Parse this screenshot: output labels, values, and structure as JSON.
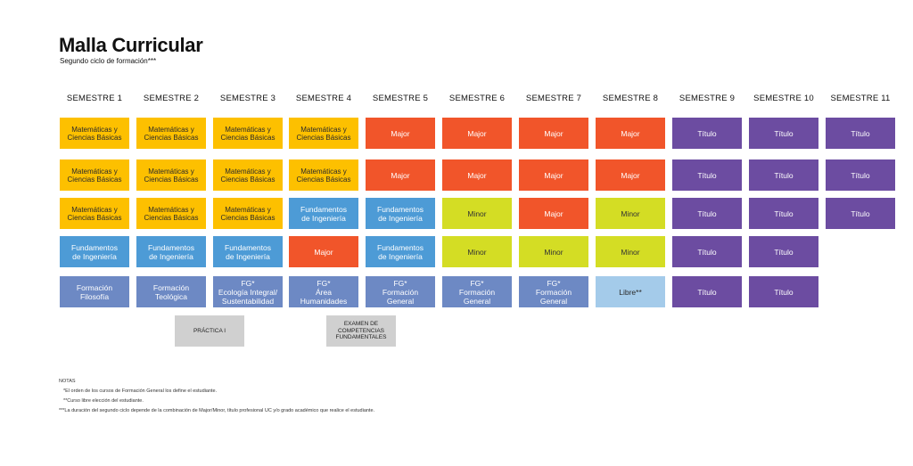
{
  "title": "Malla Curricular",
  "subtitle": "Segundo ciclo de formación***",
  "semesters": [
    "SEMESTRE 1",
    "SEMESTRE 2",
    "SEMESTRE 3",
    "SEMESTRE 4",
    "SEMESTRE 5",
    "SEMESTRE 6",
    "SEMESTRE 7",
    "SEMESTRE 8",
    "SEMESTRE 9",
    "SEMESTRE 10",
    "SEMESTRE 11"
  ],
  "colors": {
    "yellow": "#fdc000",
    "orange": "#f1552a",
    "purple": "#6c4ca1",
    "blue": "#4d9bd6",
    "slate": "#6d89c4",
    "lime": "#d4dd24",
    "light": "#a4cbea"
  },
  "columns": [
    [
      {
        "label": "Matemáticas y\nCiencias Básicas",
        "color": "yellow"
      },
      {
        "label": "Matemáticas y\nCiencias Básicas",
        "color": "yellow"
      },
      {
        "label": "Matemáticas y\nCiencias Básicas",
        "color": "yellow"
      },
      {
        "label": "Fundamentos\nde Ingeniería",
        "color": "blue"
      },
      {
        "label": "Formación\nFilosofía",
        "color": "slate"
      }
    ],
    [
      {
        "label": "Matemáticas y\nCiencias Básicas",
        "color": "yellow"
      },
      {
        "label": "Matemáticas y\nCiencias Básicas",
        "color": "yellow"
      },
      {
        "label": "Matemáticas y\nCiencias Básicas",
        "color": "yellow"
      },
      {
        "label": "Fundamentos\nde Ingeniería",
        "color": "blue"
      },
      {
        "label": "Formación\nTeológica",
        "color": "slate"
      }
    ],
    [
      {
        "label": "Matemáticas y\nCiencias Básicas",
        "color": "yellow"
      },
      {
        "label": "Matemáticas y\nCiencias Básicas",
        "color": "yellow"
      },
      {
        "label": "Matemáticas y\nCiencias Básicas",
        "color": "yellow"
      },
      {
        "label": "Fundamentos\nde Ingeniería",
        "color": "blue"
      },
      {
        "label": "FG*\nEcología Integral/\nSustentabilidad",
        "color": "slate"
      }
    ],
    [
      {
        "label": "Matemáticas y\nCiencias Básicas",
        "color": "yellow"
      },
      {
        "label": "Matemáticas y\nCiencias Básicas",
        "color": "yellow"
      },
      {
        "label": "Fundamentos\nde Ingeniería",
        "color": "blue"
      },
      {
        "label": "Major",
        "color": "orange"
      },
      {
        "label": "FG*\nÁrea\nHumanidades",
        "color": "slate"
      }
    ],
    [
      {
        "label": "Major",
        "color": "orange"
      },
      {
        "label": "Major",
        "color": "orange"
      },
      {
        "label": "Fundamentos\nde Ingeniería",
        "color": "blue"
      },
      {
        "label": "Fundamentos\nde Ingeniería",
        "color": "blue"
      },
      {
        "label": "FG*\nFormación\nGeneral",
        "color": "slate"
      }
    ],
    [
      {
        "label": "Major",
        "color": "orange"
      },
      {
        "label": "Major",
        "color": "orange"
      },
      {
        "label": "Minor",
        "color": "lime"
      },
      {
        "label": "Minor",
        "color": "lime"
      },
      {
        "label": "FG*\nFormación\nGeneral",
        "color": "slate"
      }
    ],
    [
      {
        "label": "Major",
        "color": "orange"
      },
      {
        "label": "Major",
        "color": "orange"
      },
      {
        "label": "Major",
        "color": "orange"
      },
      {
        "label": "Minor",
        "color": "lime"
      },
      {
        "label": "FG*\nFormación\nGeneral",
        "color": "slate"
      }
    ],
    [
      {
        "label": "Major",
        "color": "orange"
      },
      {
        "label": "Major",
        "color": "orange"
      },
      {
        "label": "Minor",
        "color": "lime"
      },
      {
        "label": "Minor",
        "color": "lime"
      },
      {
        "label": "Libre**",
        "color": "light"
      }
    ],
    [
      {
        "label": "Título",
        "color": "purple"
      },
      {
        "label": "Título",
        "color": "purple"
      },
      {
        "label": "Título",
        "color": "purple"
      },
      {
        "label": "Título",
        "color": "purple"
      },
      {
        "label": "Título",
        "color": "purple"
      }
    ],
    [
      {
        "label": "Título",
        "color": "purple"
      },
      {
        "label": "Título",
        "color": "purple"
      },
      {
        "label": "Título",
        "color": "purple"
      },
      {
        "label": "Título",
        "color": "purple"
      },
      {
        "label": "Título",
        "color": "purple"
      }
    ],
    [
      {
        "label": "Título",
        "color": "purple"
      },
      {
        "label": "Título",
        "color": "purple"
      },
      {
        "label": "Título",
        "color": "purple"
      }
    ]
  ],
  "extras": {
    "practica": "PRÁCTICA I",
    "examen": "EXAMEN DE\nCOMPETENCIAS\nFUNDAMENTALES"
  },
  "notes": {
    "header": "NOTAS",
    "n1": "*El orden de los cursos de Formación General los define el estudiante.",
    "n2": "**Curso libre elección del estudiante.",
    "n3": "***La duración del segundo ciclo depende de la combinación de Major/Minor, título profesional UC y/o grado académico que realice el estudiante."
  }
}
